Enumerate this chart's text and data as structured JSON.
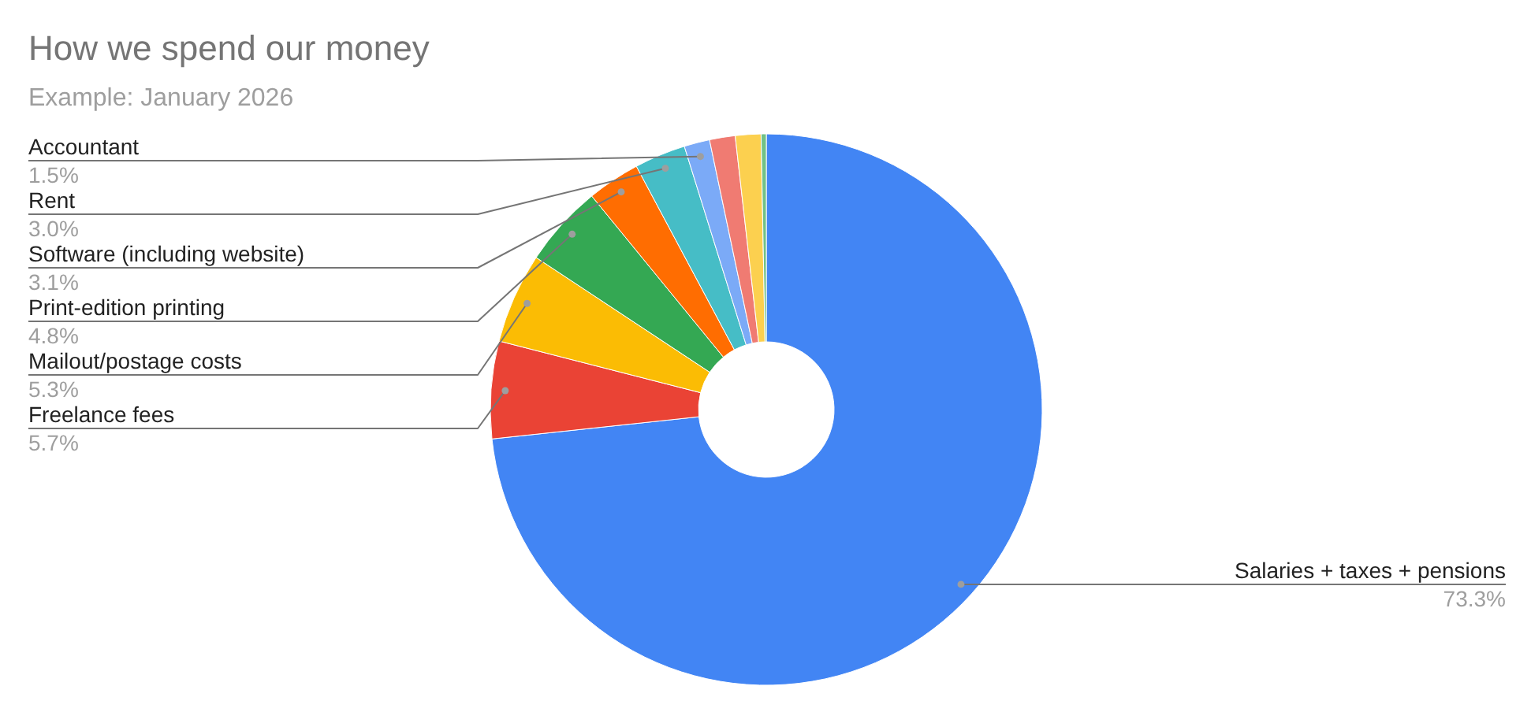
{
  "chart_data": {
    "type": "donut",
    "title": "How we spend our money",
    "subtitle": "Example: January 2026",
    "categories": [
      "Salaries + taxes + pensions",
      "Freelance fees",
      "Mailout/postage costs",
      "Print-edition printing",
      "Software (including website)",
      "Rent",
      "Accountant",
      null,
      null,
      null
    ],
    "values": [
      73.3,
      5.7,
      5.3,
      4.8,
      3.1,
      3.0,
      1.5,
      1.5,
      1.5,
      0.3
    ],
    "colors": [
      "#4285f4",
      "#ea4335",
      "#fbbc04",
      "#34a853",
      "#ff6d01",
      "#46bdc6",
      "#7baaf7",
      "#f07b72",
      "#fcd04f",
      "#71c287"
    ],
    "value_labels": [
      "73.3%",
      "5.7%",
      "5.3%",
      "4.8%",
      "3.1%",
      "3.0%",
      "1.5%",
      null,
      null,
      null
    ]
  }
}
